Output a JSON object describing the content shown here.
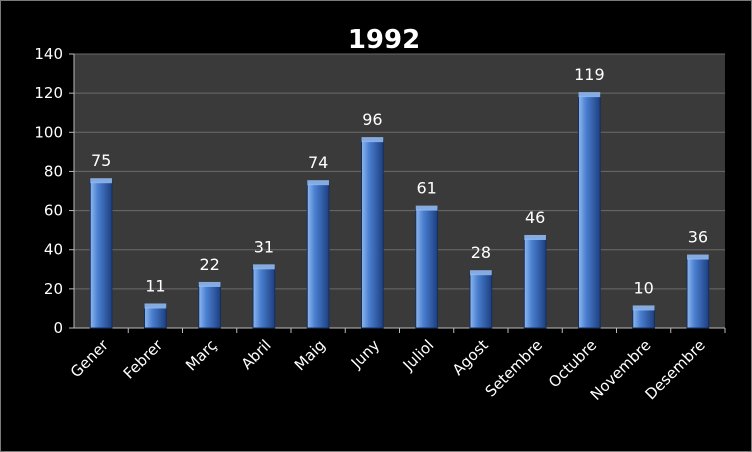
{
  "chart_data": {
    "type": "bar",
    "title": "1992",
    "categories": [
      "Gener",
      "Febrer",
      "Març",
      "Abril",
      "Maig",
      "Juny",
      "Juliol",
      "Agost",
      "Setembre",
      "Octubre",
      "Novembre",
      "Desembre"
    ],
    "values": [
      75,
      11,
      22,
      31,
      74,
      96,
      61,
      28,
      46,
      119,
      10,
      36
    ],
    "data_labels": [
      "75",
      "11",
      "22",
      "31",
      "74",
      "96",
      "61",
      "28",
      "46",
      "119",
      "10",
      "36"
    ],
    "yticks": [
      "0",
      "20",
      "40",
      "60",
      "80",
      "100",
      "120",
      "140"
    ],
    "ylim": [
      0,
      140
    ],
    "ytick_step": 20,
    "grid": true,
    "legend": false,
    "colors": {
      "background": "#000000",
      "plot_background": "#3a3a3a",
      "gridline": "#6a6a6a",
      "bar_light": "#8fb8ee",
      "bar_mid": "#4a7fd0",
      "bar_dark": "#1d3f80",
      "text": "#ffffff"
    }
  }
}
